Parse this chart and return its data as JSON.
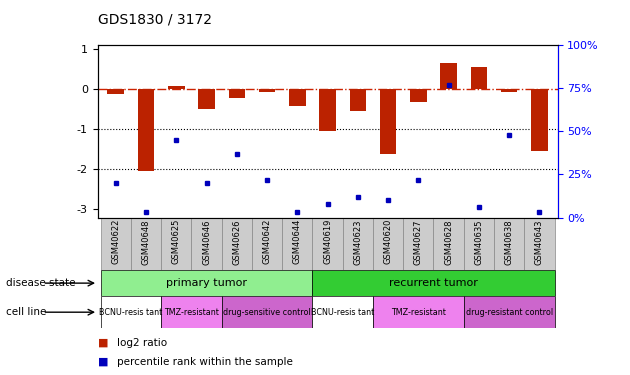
{
  "title": "GDS1830 / 3172",
  "samples": [
    "GSM40622",
    "GSM40648",
    "GSM40625",
    "GSM40646",
    "GSM40626",
    "GSM40642",
    "GSM40644",
    "GSM40619",
    "GSM40623",
    "GSM40620",
    "GSM40627",
    "GSM40628",
    "GSM40635",
    "GSM40638",
    "GSM40643"
  ],
  "log2_ratio": [
    -0.13,
    -2.05,
    0.07,
    -0.5,
    -0.22,
    -0.08,
    -0.42,
    -1.05,
    -0.55,
    -1.62,
    -0.33,
    0.65,
    0.55,
    -0.06,
    -1.55
  ],
  "percentile": [
    20,
    3,
    45,
    20,
    37,
    22,
    3,
    8,
    12,
    10,
    22,
    77,
    6,
    48,
    3
  ],
  "disease_state_groups": [
    {
      "label": "primary tumor",
      "start": 0,
      "end": 7,
      "color": "#90ee90"
    },
    {
      "label": "recurrent tumor",
      "start": 7,
      "end": 15,
      "color": "#33cc33"
    }
  ],
  "cell_line_groups": [
    {
      "label": "BCNU-resis tant",
      "start": 0,
      "end": 2,
      "color": "#ffffff"
    },
    {
      "label": "TMZ-resistant",
      "start": 2,
      "end": 4,
      "color": "#ee82ee"
    },
    {
      "label": "drug-sensitive control",
      "start": 4,
      "end": 7,
      "color": "#cc66cc"
    },
    {
      "label": "BCNU-resis tant",
      "start": 7,
      "end": 9,
      "color": "#ffffff"
    },
    {
      "label": "TMZ-resistant",
      "start": 9,
      "end": 12,
      "color": "#ee82ee"
    },
    {
      "label": "drug-resistant control",
      "start": 12,
      "end": 15,
      "color": "#cc66cc"
    }
  ],
  "bar_color": "#bb2200",
  "dot_color": "#0000bb",
  "hline_color": "#cc2200",
  "dotline1": -1.0,
  "dotline2": -2.0,
  "ylim_left": [
    -3.2,
    1.1
  ],
  "ylim_right": [
    0,
    100
  ],
  "right_ticks": [
    0,
    25,
    50,
    75,
    100
  ],
  "right_tick_labels": [
    "0%",
    "25%",
    "50%",
    "75%",
    "100%"
  ],
  "left_ticks": [
    -3,
    -2,
    -1,
    0,
    1
  ],
  "background_color": "#ffffff",
  "label_disease": "disease state",
  "label_cell": "cell line",
  "gray_bg": "#cccccc",
  "sample_label_fontsize": 6.0,
  "bar_width": 0.55
}
